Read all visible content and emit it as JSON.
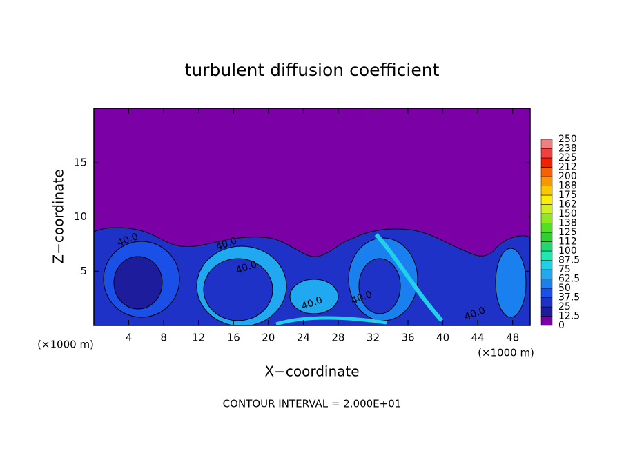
{
  "chart_data": {
    "type": "contour",
    "title": "turbulent diffusion coefficient",
    "x_label": "X−coordinate",
    "y_label": "Z−coordinate",
    "x_unit": "(×1000 m)",
    "y_unit": "(×1000 m)",
    "xlim": [
      0,
      50
    ],
    "xticks": [
      4,
      8,
      12,
      16,
      20,
      24,
      28,
      32,
      36,
      40,
      44,
      48
    ],
    "ylim": [
      0,
      20
    ],
    "yticks": [
      5,
      10,
      15
    ],
    "colorbar": {
      "levels": [
        0,
        12.5,
        25,
        37.5,
        50,
        62.5,
        75,
        87.5,
        100,
        112,
        125,
        138,
        150,
        162,
        175,
        188,
        200,
        212,
        225,
        238,
        250
      ],
      "colors": [
        "#7b00a5",
        "#1c1c9c",
        "#1e32c8",
        "#1a50e8",
        "#1a80f0",
        "#20a8f0",
        "#20d0e8",
        "#20e8b0",
        "#20d870",
        "#30d030",
        "#50e020",
        "#90e820",
        "#d0f020",
        "#f8f000",
        "#f8c800",
        "#f89800",
        "#f86000",
        "#f02000",
        "#f04040",
        "#f08080"
      ]
    },
    "contour_labels": [
      {
        "value": 40,
        "label": "40.0"
      },
      {
        "value": 40,
        "label": "40.0"
      },
      {
        "value": 40,
        "label": "40.0"
      },
      {
        "value": 40,
        "label": "40.0"
      },
      {
        "value": 40,
        "label": "40.0"
      },
      {
        "value": 40,
        "label": "40.0"
      }
    ],
    "footer": "CONTOUR INTERVAL = 2.000E+01"
  }
}
